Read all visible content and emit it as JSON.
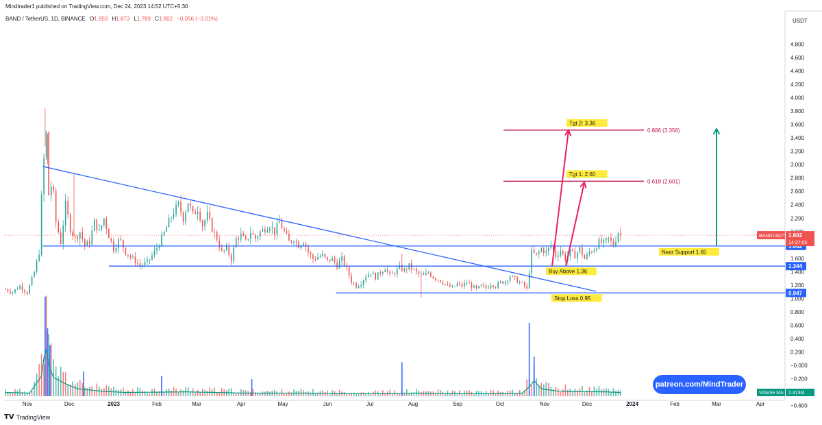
{
  "header": {
    "published_line": "Mindtrader1 published on TradingView.com, Dec 24, 2023 14:52 UTC+5:30",
    "symbol": "BAND / TetherUS, 1D, BINANCE",
    "open_label": "O",
    "open": "1.859",
    "high_label": "H",
    "high": "1.873",
    "low_label": "L",
    "low": "1.789",
    "close_label": "C",
    "close": "1.802",
    "change": "−0.056 (−3.01%)"
  },
  "footer": {
    "brand": "TradingView"
  },
  "patreon_button": "patreon.com/MindTrader",
  "colors": {
    "up": "#26a69a",
    "down": "#ef5350",
    "trend": "#2962ff",
    "fib": "#c2185b",
    "arrow": "#e91e63",
    "green_arrow": "#089981",
    "label_bg": "#ffeb3b",
    "axis_badge": "#2962ff"
  },
  "chart_data": {
    "type": "candlestick",
    "price_axis_unit": "USDT",
    "y_ticks": [
      "4.800",
      "4.600",
      "4.400",
      "4.200",
      "4.000",
      "3.800",
      "3.600",
      "3.400",
      "3.200",
      "3.000",
      "2.800",
      "2.600",
      "2.400",
      "2.200",
      "2.000",
      "1.800",
      "1.600",
      "1.400",
      "1.200",
      "1.000",
      "0.800",
      "0.600",
      "0.400",
      "0.200",
      "−0.000",
      "−0.200",
      "−0.400",
      "−0.600"
    ],
    "x_ticks": [
      "Nov",
      "Dec",
      "2023",
      "Feb",
      "Mar",
      "Apr",
      "May",
      "Jun",
      "Jul",
      "Aug",
      "Sep",
      "Oct",
      "Nov",
      "Dec",
      "2024",
      "Feb",
      "Mar",
      "Apr"
    ],
    "price_path": [
      [
        0,
        1.0
      ],
      [
        6,
        0.96
      ],
      [
        12,
        1.05
      ],
      [
        18,
        0.95
      ],
      [
        24,
        1.25
      ],
      [
        28,
        1.55
      ],
      [
        31,
        2.75
      ],
      [
        34,
        3.3
      ],
      [
        36,
        2.4
      ],
      [
        39,
        2.6
      ],
      [
        42,
        2.0
      ],
      [
        46,
        1.7
      ],
      [
        50,
        2.25
      ],
      [
        54,
        1.9
      ],
      [
        58,
        1.75
      ],
      [
        62,
        1.85
      ],
      [
        66,
        1.65
      ],
      [
        70,
        1.7
      ],
      [
        74,
        2.0
      ],
      [
        78,
        1.85
      ],
      [
        82,
        2.05
      ],
      [
        86,
        1.8
      ],
      [
        90,
        1.6
      ],
      [
        95,
        1.75
      ],
      [
        100,
        1.55
      ],
      [
        106,
        1.45
      ],
      [
        112,
        1.35
      ],
      [
        118,
        1.4
      ],
      [
        124,
        1.55
      ],
      [
        130,
        1.75
      ],
      [
        136,
        2.0
      ],
      [
        140,
        2.15
      ],
      [
        144,
        2.25
      ],
      [
        148,
        2.05
      ],
      [
        152,
        2.3
      ],
      [
        156,
        2.1
      ],
      [
        160,
        2.2
      ],
      [
        164,
        1.95
      ],
      [
        168,
        2.1
      ],
      [
        172,
        1.9
      ],
      [
        176,
        1.75
      ],
      [
        180,
        1.55
      ],
      [
        184,
        1.6
      ],
      [
        188,
        1.45
      ],
      [
        192,
        1.75
      ],
      [
        196,
        1.8
      ],
      [
        200,
        1.7
      ],
      [
        204,
        1.85
      ],
      [
        208,
        1.75
      ],
      [
        212,
        1.85
      ],
      [
        216,
        1.9
      ],
      [
        220,
        1.95
      ],
      [
        224,
        1.85
      ],
      [
        228,
        2.0
      ],
      [
        232,
        1.85
      ],
      [
        236,
        1.7
      ],
      [
        240,
        1.75
      ],
      [
        244,
        1.65
      ],
      [
        248,
        1.72
      ],
      [
        252,
        1.55
      ],
      [
        256,
        1.45
      ],
      [
        260,
        1.48
      ],
      [
        264,
        1.5
      ],
      [
        268,
        1.42
      ],
      [
        272,
        1.45
      ],
      [
        276,
        1.35
      ],
      [
        280,
        1.45
      ],
      [
        284,
        1.3
      ],
      [
        288,
        1.12
      ],
      [
        292,
        1.05
      ],
      [
        296,
        1.1
      ],
      [
        300,
        1.2
      ],
      [
        304,
        1.25
      ],
      [
        308,
        1.18
      ],
      [
        312,
        1.25
      ],
      [
        316,
        1.32
      ],
      [
        320,
        1.2
      ],
      [
        324,
        1.25
      ],
      [
        328,
        1.32
      ],
      [
        332,
        1.28
      ],
      [
        336,
        1.35
      ],
      [
        340,
        1.28
      ],
      [
        344,
        1.22
      ],
      [
        348,
        1.2
      ],
      [
        352,
        1.25
      ],
      [
        356,
        1.18
      ],
      [
        360,
        1.15
      ],
      [
        364,
        1.1
      ],
      [
        368,
        1.05
      ],
      [
        372,
        1.02
      ],
      [
        376,
        1.08
      ],
      [
        380,
        1.05
      ],
      [
        384,
        1.1
      ],
      [
        388,
        1.05
      ],
      [
        392,
        1.0
      ],
      [
        396,
        1.05
      ],
      [
        400,
        1.02
      ],
      [
        404,
        1.08
      ],
      [
        408,
        1.05
      ],
      [
        412,
        1.1
      ],
      [
        416,
        1.12
      ],
      [
        420,
        1.2
      ],
      [
        424,
        1.15
      ],
      [
        428,
        1.1
      ],
      [
        432,
        1.05
      ],
      [
        434,
        1.0
      ],
      [
        438,
        1.55
      ],
      [
        442,
        1.5
      ],
      [
        446,
        1.6
      ],
      [
        450,
        1.55
      ],
      [
        454,
        1.65
      ],
      [
        458,
        1.5
      ],
      [
        462,
        1.58
      ],
      [
        466,
        1.45
      ],
      [
        470,
        1.55
      ],
      [
        474,
        1.5
      ],
      [
        478,
        1.6
      ],
      [
        482,
        1.45
      ],
      [
        486,
        1.55
      ],
      [
        490,
        1.6
      ],
      [
        494,
        1.7
      ],
      [
        498,
        1.68
      ],
      [
        502,
        1.75
      ],
      [
        506,
        1.65
      ],
      [
        510,
        1.85
      ],
      [
        512,
        1.8
      ]
    ],
    "volume_path": [
      [
        0,
        0.06
      ],
      [
        20,
        0.05
      ],
      [
        31,
        0.35
      ],
      [
        33,
        0.88
      ],
      [
        36,
        0.5
      ],
      [
        40,
        0.3
      ],
      [
        50,
        0.2
      ],
      [
        60,
        0.12
      ],
      [
        80,
        0.08
      ],
      [
        100,
        0.06
      ],
      [
        150,
        0.07
      ],
      [
        200,
        0.05
      ],
      [
        250,
        0.05
      ],
      [
        300,
        0.04
      ],
      [
        340,
        0.05
      ],
      [
        400,
        0.04
      ],
      [
        430,
        0.05
      ],
      [
        436,
        0.15
      ],
      [
        440,
        0.25
      ],
      [
        446,
        0.12
      ],
      [
        460,
        0.08
      ],
      [
        500,
        0.07
      ],
      [
        512,
        0.06
      ]
    ],
    "volume_spikes": [
      {
        "i": 33,
        "v": 0.88
      },
      {
        "i": 35,
        "v": 0.6
      },
      {
        "i": 37,
        "v": 0.45
      },
      {
        "i": 65,
        "v": 0.22
      },
      {
        "i": 130,
        "v": 0.18
      },
      {
        "i": 205,
        "v": 0.15
      },
      {
        "i": 330,
        "v": 0.3
      },
      {
        "i": 436,
        "v": 0.65
      },
      {
        "i": 440,
        "v": 0.35
      }
    ],
    "trendline": {
      "from": [
        31,
        2.82
      ],
      "to": [
        500,
        0.97
      ]
    },
    "support_lines": [
      {
        "value": 1.642,
        "label": "Near Support 1.65",
        "axis": "1.642",
        "from": 31
      },
      {
        "value": 1.344,
        "label": "Buy Above 1.36",
        "axis": "1.344",
        "from": 86
      },
      {
        "value": 0.947,
        "label": "Stop Loss 0.95",
        "axis": "0.947",
        "from": 275
      }
    ],
    "targets": [
      {
        "value": 3.358,
        "box": "Tgt 2: 3.36",
        "fib": "0.886 (3.358)"
      },
      {
        "value": 2.601,
        "box": "Tgt 1: 2.60",
        "fib": "0.618 (2.601)"
      }
    ],
    "last_price": {
      "symbol": "BANDUSDT",
      "value": "1.802",
      "countdown": "14:37:05"
    },
    "volume_ma": {
      "label": "Volume MA",
      "value": "2.413M"
    }
  }
}
